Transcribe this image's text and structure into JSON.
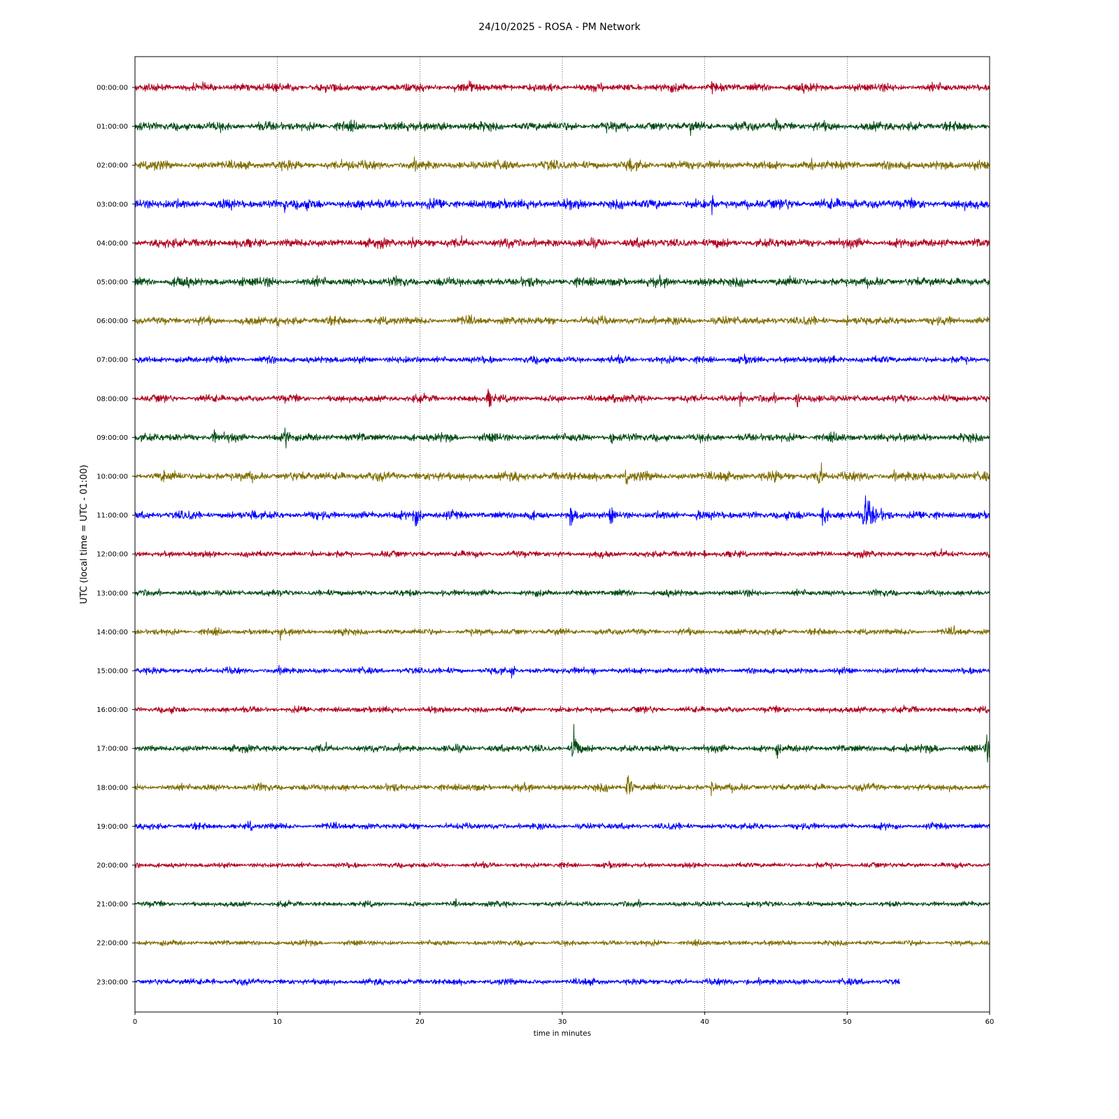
{
  "chart_data": {
    "type": "line",
    "title": "24/10/2025 - ROSA - PM Network",
    "xlabel": "time in minutes",
    "ylabel": "UTC (local time = UTC - 01:00)",
    "xlim": [
      0,
      60
    ],
    "x_ticks": [
      "0",
      "10",
      "20",
      "30",
      "40",
      "50",
      "60"
    ],
    "grid": "vertical dotted lines at x ticks",
    "colors": [
      "#b0001e",
      "#004a12",
      "#7f6d00",
      "#0000ff"
    ],
    "series": [
      {
        "name": "00:00:00",
        "color": "#b0001e",
        "end_minute": 60,
        "amplitude": 0.45,
        "events": [
          {
            "minute": 23.5,
            "amplitude": 1.1,
            "duration": 0.5
          },
          {
            "minute": 40.5,
            "amplitude": 0.8,
            "duration": 1.0
          }
        ]
      },
      {
        "name": "01:00:00",
        "color": "#004a12",
        "end_minute": 60,
        "amplitude": 0.5,
        "events": [
          {
            "minute": 21.5,
            "amplitude": 1.0,
            "duration": 0.5
          },
          {
            "minute": 39.0,
            "amplitude": 1.0,
            "duration": 0.5
          },
          {
            "minute": 45.0,
            "amplitude": 1.0,
            "duration": 0.5
          }
        ]
      },
      {
        "name": "02:00:00",
        "color": "#7f6d00",
        "end_minute": 60,
        "amplitude": 0.5,
        "events": [
          {
            "minute": 15.0,
            "amplitude": 0.9,
            "duration": 0.8
          },
          {
            "minute": 34.7,
            "amplitude": 1.2,
            "duration": 0.6
          },
          {
            "minute": 47.5,
            "amplitude": 0.9,
            "duration": 0.5
          }
        ]
      },
      {
        "name": "03:00:00",
        "color": "#0000ff",
        "end_minute": 60,
        "amplitude": 0.55,
        "events": [
          {
            "minute": 10.5,
            "amplitude": 0.9,
            "duration": 0.5
          },
          {
            "minute": 40.5,
            "amplitude": 1.2,
            "duration": 0.5
          },
          {
            "minute": 50.5,
            "amplitude": 0.9,
            "duration": 0.4
          }
        ]
      },
      {
        "name": "04:00:00",
        "color": "#b0001e",
        "end_minute": 60,
        "amplitude": 0.5,
        "events": [
          {
            "minute": 19.5,
            "amplitude": 1.1,
            "duration": 0.5
          },
          {
            "minute": 26.0,
            "amplitude": 0.8,
            "duration": 0.5
          }
        ]
      },
      {
        "name": "05:00:00",
        "color": "#004a12",
        "end_minute": 60,
        "amplitude": 0.5,
        "events": [
          {
            "minute": 3.0,
            "amplitude": 1.0,
            "duration": 0.8
          },
          {
            "minute": 7.5,
            "amplitude": 0.8,
            "duration": 0.4
          }
        ]
      },
      {
        "name": "06:00:00",
        "color": "#7f6d00",
        "end_minute": 60,
        "amplitude": 0.45,
        "events": [
          {
            "minute": 10.0,
            "amplitude": 0.8,
            "duration": 0.5
          },
          {
            "minute": 50.0,
            "amplitude": 0.7,
            "duration": 0.4
          }
        ]
      },
      {
        "name": "07:00:00",
        "color": "#0000ff",
        "end_minute": 60,
        "amplitude": 0.4,
        "events": [
          {
            "minute": 20.0,
            "amplitude": 0.6,
            "duration": 0.5
          },
          {
            "minute": 49.0,
            "amplitude": 0.8,
            "duration": 0.4
          }
        ]
      },
      {
        "name": "08:00:00",
        "color": "#b0001e",
        "end_minute": 60,
        "amplitude": 0.4,
        "events": [
          {
            "minute": 24.8,
            "amplitude": 1.3,
            "duration": 1.0
          },
          {
            "minute": 33.5,
            "amplitude": 1.0,
            "duration": 0.6
          },
          {
            "minute": 42.5,
            "amplitude": 1.0,
            "duration": 0.5
          },
          {
            "minute": 46.5,
            "amplitude": 1.1,
            "duration": 0.5
          },
          {
            "minute": 56.5,
            "amplitude": 1.0,
            "duration": 0.3
          }
        ]
      },
      {
        "name": "09:00:00",
        "color": "#004a12",
        "end_minute": 60,
        "amplitude": 0.45,
        "events": [
          {
            "minute": 5.5,
            "amplitude": 0.9,
            "duration": 0.6
          },
          {
            "minute": 10.5,
            "amplitude": 1.2,
            "duration": 1.0
          },
          {
            "minute": 33.5,
            "amplitude": 0.9,
            "duration": 0.5
          }
        ]
      },
      {
        "name": "10:00:00",
        "color": "#7f6d00",
        "end_minute": 60,
        "amplitude": 0.5,
        "events": [
          {
            "minute": 2.0,
            "amplitude": 0.9,
            "duration": 0.6
          },
          {
            "minute": 34.5,
            "amplitude": 0.9,
            "duration": 0.8
          },
          {
            "minute": 44.8,
            "amplitude": 1.2,
            "duration": 0.8
          },
          {
            "minute": 48.0,
            "amplitude": 1.4,
            "duration": 0.8
          },
          {
            "minute": 55.3,
            "amplitude": 1.0,
            "duration": 0.5
          }
        ]
      },
      {
        "name": "11:00:00",
        "color": "#0000ff",
        "end_minute": 60,
        "amplitude": 0.45,
        "events": [
          {
            "minute": 8.3,
            "amplitude": 1.0,
            "duration": 0.5
          },
          {
            "minute": 19.6,
            "amplitude": 1.4,
            "duration": 1.0
          },
          {
            "minute": 30.6,
            "amplitude": 1.3,
            "duration": 0.6
          },
          {
            "minute": 33.4,
            "amplitude": 1.2,
            "duration": 0.6
          },
          {
            "minute": 39.5,
            "amplitude": 1.0,
            "duration": 0.6
          },
          {
            "minute": 48.3,
            "amplitude": 1.6,
            "duration": 0.8
          },
          {
            "minute": 51.2,
            "amplitude": 2.0,
            "duration": 2.2
          }
        ]
      },
      {
        "name": "12:00:00",
        "color": "#b0001e",
        "end_minute": 60,
        "amplitude": 0.35,
        "events": [
          {
            "minute": 12.5,
            "amplitude": 0.6,
            "duration": 0.4
          },
          {
            "minute": 40.0,
            "amplitude": 0.7,
            "duration": 0.4
          }
        ]
      },
      {
        "name": "13:00:00",
        "color": "#004a12",
        "end_minute": 60,
        "amplitude": 0.35,
        "events": [
          {
            "minute": 9.8,
            "amplitude": 0.7,
            "duration": 0.4
          },
          {
            "minute": 21.5,
            "amplitude": 0.6,
            "duration": 0.4
          }
        ]
      },
      {
        "name": "14:00:00",
        "color": "#7f6d00",
        "end_minute": 60,
        "amplitude": 0.35,
        "events": [
          {
            "minute": 10.2,
            "amplitude": 0.8,
            "duration": 0.5
          },
          {
            "minute": 14.5,
            "amplitude": 0.8,
            "duration": 0.8
          },
          {
            "minute": 57.5,
            "amplitude": 0.8,
            "duration": 0.3
          }
        ]
      },
      {
        "name": "15:00:00",
        "color": "#0000ff",
        "end_minute": 60,
        "amplitude": 0.35,
        "events": [
          {
            "minute": 10.5,
            "amplitude": 0.7,
            "duration": 0.5
          },
          {
            "minute": 26.5,
            "amplitude": 1.2,
            "duration": 0.3
          },
          {
            "minute": 32.2,
            "amplitude": 0.7,
            "duration": 0.3
          }
        ]
      },
      {
        "name": "16:00:00",
        "color": "#b0001e",
        "end_minute": 60,
        "amplitude": 0.35,
        "events": [
          {
            "minute": 52.5,
            "amplitude": 0.6,
            "duration": 0.4
          }
        ]
      },
      {
        "name": "17:00:00",
        "color": "#004a12",
        "end_minute": 60,
        "amplitude": 0.4,
        "events": [
          {
            "minute": 30.8,
            "amplitude": 2.6,
            "duration": 0.6
          },
          {
            "minute": 45.1,
            "amplitude": 1.0,
            "duration": 0.6
          },
          {
            "minute": 54.1,
            "amplitude": 0.7,
            "duration": 0.4
          },
          {
            "minute": 59.8,
            "amplitude": 1.6,
            "duration": 0.6
          }
        ]
      },
      {
        "name": "18:00:00",
        "color": "#7f6d00",
        "end_minute": 60,
        "amplitude": 0.4,
        "events": [
          {
            "minute": 34.6,
            "amplitude": 1.8,
            "duration": 0.6
          },
          {
            "minute": 40.5,
            "amplitude": 0.8,
            "duration": 1.0
          }
        ]
      },
      {
        "name": "19:00:00",
        "color": "#0000ff",
        "end_minute": 60,
        "amplitude": 0.35,
        "events": [
          {
            "minute": 8.0,
            "amplitude": 0.7,
            "duration": 0.8
          },
          {
            "minute": 10.0,
            "amplitude": 0.6,
            "duration": 0.4
          }
        ]
      },
      {
        "name": "20:00:00",
        "color": "#b0001e",
        "end_minute": 60,
        "amplitude": 0.3,
        "events": [
          {
            "minute": 10.0,
            "amplitude": 0.5,
            "duration": 0.4
          }
        ]
      },
      {
        "name": "21:00:00",
        "color": "#004a12",
        "end_minute": 60,
        "amplitude": 0.3,
        "events": [
          {
            "minute": 22.5,
            "amplitude": 0.5,
            "duration": 0.4
          },
          {
            "minute": 43.0,
            "amplitude": 0.5,
            "duration": 0.4
          }
        ]
      },
      {
        "name": "22:00:00",
        "color": "#7f6d00",
        "end_minute": 60,
        "amplitude": 0.3,
        "events": [
          {
            "minute": 2.0,
            "amplitude": 0.5,
            "duration": 0.4
          }
        ]
      },
      {
        "name": "23:00:00",
        "color": "#0000ff",
        "end_minute": 53.7,
        "amplitude": 0.35,
        "events": [
          {
            "minute": 5.5,
            "amplitude": 0.6,
            "duration": 0.4
          },
          {
            "minute": 43.0,
            "amplitude": 0.5,
            "duration": 0.4
          }
        ]
      }
    ]
  }
}
